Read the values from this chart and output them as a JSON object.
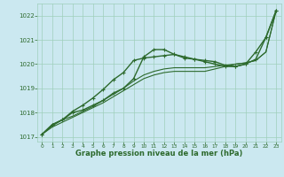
{
  "xlabel": "Graphe pression niveau de la mer (hPa)",
  "ylim": [
    1016.8,
    1022.5
  ],
  "xlim": [
    -0.5,
    23.5
  ],
  "yticks": [
    1017,
    1018,
    1019,
    1020,
    1021,
    1022
  ],
  "xticks": [
    0,
    1,
    2,
    3,
    4,
    5,
    6,
    7,
    8,
    9,
    10,
    11,
    12,
    13,
    14,
    15,
    16,
    17,
    18,
    19,
    20,
    21,
    22,
    23
  ],
  "bg_color": "#cbe8f0",
  "grid_color": "#9fcfbb",
  "line_color": "#2d6a2d",
  "lines": [
    {
      "x": [
        0,
        1,
        2,
        3,
        4,
        5,
        6,
        7,
        8,
        9,
        10,
        11,
        12,
        13,
        14,
        15,
        16,
        17,
        18,
        19,
        20,
        21,
        22,
        23
      ],
      "y": [
        1017.1,
        1017.5,
        1017.7,
        1018.05,
        1018.3,
        1018.6,
        1018.95,
        1019.35,
        1019.65,
        1020.15,
        1020.25,
        1020.3,
        1020.35,
        1020.4,
        1020.25,
        1020.2,
        1020.15,
        1020.1,
        1019.95,
        1019.9,
        1020.0,
        1020.2,
        1021.1,
        1022.2
      ],
      "marker": "+",
      "lw": 1.0
    },
    {
      "x": [
        0,
        1,
        2,
        3,
        4,
        5,
        6,
        7,
        8,
        9,
        10,
        11,
        12,
        13,
        14,
        15,
        16,
        17,
        18,
        19,
        20,
        21,
        22,
        23
      ],
      "y": [
        1017.1,
        1017.45,
        1017.7,
        1017.85,
        1018.05,
        1018.25,
        1018.5,
        1018.75,
        1019.0,
        1019.3,
        1019.55,
        1019.7,
        1019.8,
        1019.85,
        1019.85,
        1019.85,
        1019.85,
        1019.9,
        1019.95,
        1020.0,
        1020.05,
        1020.15,
        1020.5,
        1022.2
      ],
      "marker": null,
      "lw": 0.8
    },
    {
      "x": [
        0,
        1,
        2,
        3,
        4,
        5,
        6,
        7,
        8,
        9,
        10,
        11,
        12,
        13,
        14,
        15,
        16,
        17,
        18,
        19,
        20,
        21,
        22,
        23
      ],
      "y": [
        1017.1,
        1017.4,
        1017.6,
        1017.8,
        1018.0,
        1018.2,
        1018.4,
        1018.65,
        1018.9,
        1019.15,
        1019.4,
        1019.55,
        1019.65,
        1019.7,
        1019.7,
        1019.7,
        1019.7,
        1019.8,
        1019.9,
        1020.0,
        1020.05,
        1020.15,
        1020.5,
        1022.2
      ],
      "marker": null,
      "lw": 0.8
    },
    {
      "x": [
        0,
        1,
        2,
        3,
        4,
        5,
        6,
        7,
        8,
        9,
        10,
        11,
        12,
        13,
        14,
        15,
        16,
        17,
        18,
        19,
        20,
        21,
        22,
        23
      ],
      "y": [
        1017.1,
        1017.5,
        1017.7,
        1018.0,
        1018.1,
        1018.3,
        1018.5,
        1018.8,
        1019.0,
        1019.4,
        1020.3,
        1020.6,
        1020.6,
        1020.4,
        1020.3,
        1020.2,
        1020.1,
        1020.0,
        1019.9,
        1019.9,
        1020.0,
        1020.5,
        1021.1,
        1022.2
      ],
      "marker": "+",
      "lw": 1.0
    }
  ]
}
